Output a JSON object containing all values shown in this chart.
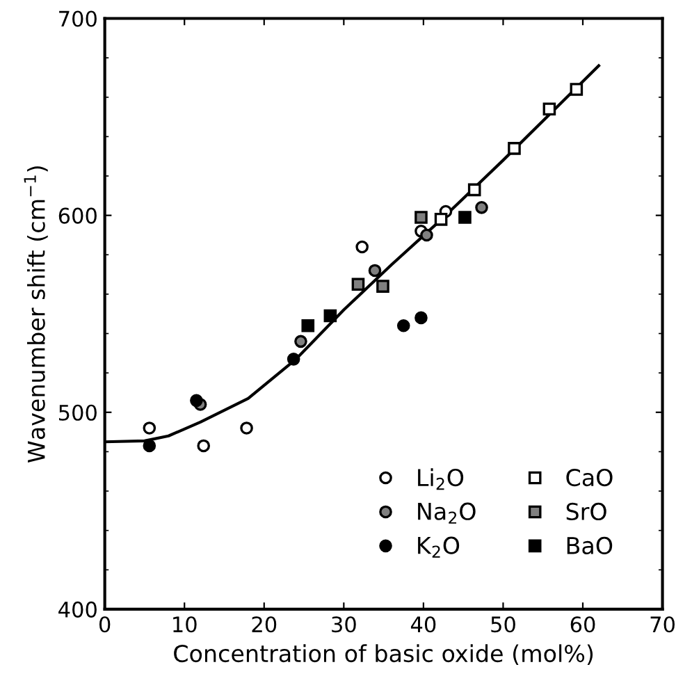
{
  "chart_data": {
    "type": "scatter",
    "xlabel": "Concentration of basic oxide (mol%)",
    "ylabel": "Wavenumber shift (cm$^{−1}$)",
    "xlim": [
      0,
      70
    ],
    "ylim": [
      400,
      700
    ],
    "xticks": [
      0,
      10,
      20,
      30,
      40,
      50,
      60,
      70
    ],
    "yticks": [
      400,
      500,
      600,
      700
    ],
    "grid": false,
    "legend": "bottom right",
    "series": [
      {
        "name": "Li$_{2}$O",
        "color": "#ffffff",
        "marker": "circle",
        "x": [
          5.6,
          12.4,
          17.8,
          32.3,
          39.7,
          42.8
        ],
        "values": [
          492,
          483,
          492,
          584,
          592,
          602
        ]
      },
      {
        "name": "Na$_{2}$O",
        "color": "#808080",
        "marker": "circle",
        "x": [
          12,
          24.6,
          33.9,
          40.4,
          47.3
        ],
        "values": [
          504,
          536,
          572,
          590,
          604
        ]
      },
      {
        "name": "K$_{2}$O",
        "color": "#000000",
        "marker": "circle",
        "x": [
          5.6,
          11.5,
          23.7,
          37.5,
          39.7
        ],
        "values": [
          483,
          506,
          527,
          544,
          548
        ]
      },
      {
        "name": "CaO",
        "color": "#ffffff",
        "marker": "square",
        "x": [
          42.2,
          46.4,
          51.4,
          55.8,
          59.2
        ],
        "values": [
          598,
          613,
          634,
          654,
          664
        ]
      },
      {
        "name": "SrO",
        "color": "#808080",
        "marker": "square",
        "x": [
          31.8,
          34.9,
          39.7
        ],
        "values": [
          565,
          564,
          599
        ]
      },
      {
        "name": "BaO",
        "color": "#000000",
        "marker": "square",
        "x": [
          25.5,
          28.3,
          45.2
        ],
        "values": [
          544,
          549,
          599
        ]
      },
      {
        "type": "line",
        "color": "#000000",
        "line_style": "solid",
        "x": [
          0,
          5,
          8,
          12,
          18,
          24,
          30,
          36,
          42,
          50,
          56,
          62
        ],
        "values": [
          485,
          485.5,
          488,
          495,
          507,
          527,
          552,
          575,
          597,
          628,
          652,
          676
        ]
      }
    ]
  }
}
